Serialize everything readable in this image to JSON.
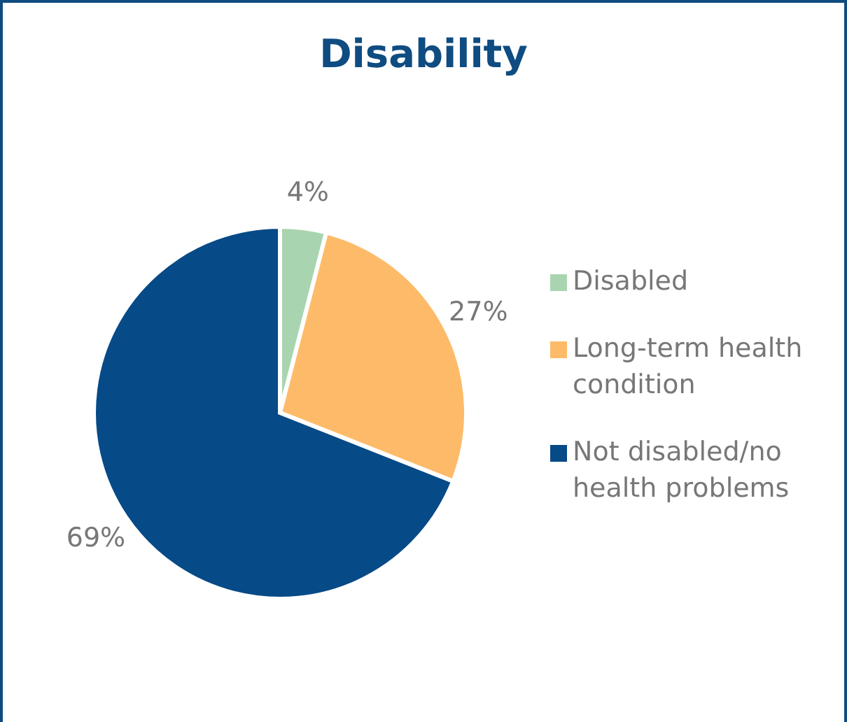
{
  "chart_data": {
    "type": "pie",
    "title": "Disability",
    "categories": [
      "Disabled",
      "Long-term health condition",
      "Not disabled/no health problems"
    ],
    "values": [
      4,
      27,
      69
    ],
    "colors": [
      "#a8d5b0",
      "#fdbb6a",
      "#064a87"
    ],
    "value_labels": [
      "4%",
      "27%",
      "69%"
    ],
    "legend": "right"
  }
}
